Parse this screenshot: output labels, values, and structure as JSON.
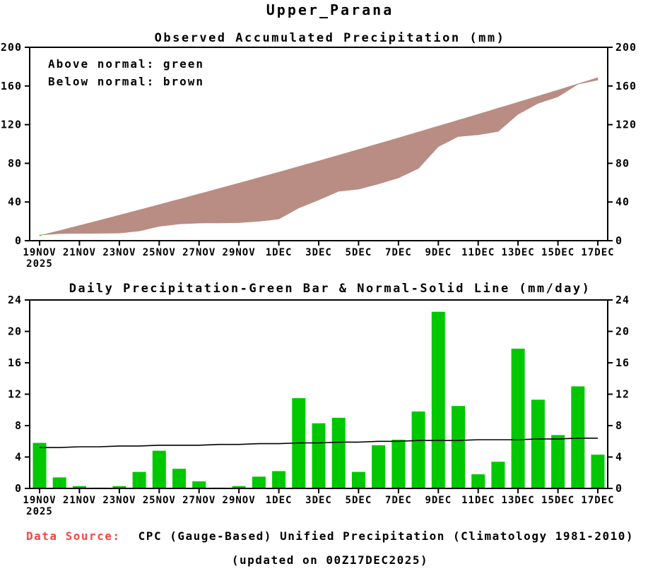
{
  "page_title": "Upper_Parana",
  "footer": {
    "data_source_label": "Data Source:",
    "data_source_text": "CPC (Gauge-Based) Unified Precipitation (Climatology 1981-2010)",
    "updated_line": "(updated on 00Z17DEC2025)",
    "label_color": "#fa4545"
  },
  "chart_data": [
    {
      "type": "area",
      "title": "Observed Accumulated Precipitation (mm)",
      "annotations": [
        "Above normal: green",
        "Below normal: brown"
      ],
      "x": [
        "19NOV",
        "20NOV",
        "21NOV",
        "22NOV",
        "23NOV",
        "24NOV",
        "25NOV",
        "26NOV",
        "27NOV",
        "28NOV",
        "29NOV",
        "30NOV",
        "1DEC",
        "2DEC",
        "3DEC",
        "4DEC",
        "5DEC",
        "6DEC",
        "7DEC",
        "8DEC",
        "9DEC",
        "10DEC",
        "11DEC",
        "12DEC",
        "13DEC",
        "14DEC",
        "15DEC",
        "16DEC",
        "17DEC"
      ],
      "x_sublabel": "2025",
      "x_tick_step": 2,
      "ylim": [
        0,
        200
      ],
      "yticks": [
        0,
        40,
        80,
        120,
        160,
        200
      ],
      "series": [
        {
          "name": "Normal accumulated precipitation",
          "values": [
            5.2,
            10.4,
            15.7,
            21.0,
            26.4,
            31.8,
            37.3,
            42.8,
            48.3,
            53.9,
            59.5,
            65.2,
            70.9,
            76.7,
            82.5,
            88.4,
            94.3,
            100.3,
            106.3,
            112.4,
            118.5,
            124.6,
            130.8,
            137.0,
            143.2,
            149.5,
            155.8,
            162.2,
            168.6
          ]
        },
        {
          "name": "Observed accumulated precipitation",
          "values": [
            5.8,
            7.2,
            7.5,
            7.6,
            7.9,
            10.0,
            14.8,
            17.3,
            18.2,
            18.3,
            18.6,
            20.1,
            22.3,
            33.8,
            42.1,
            51.1,
            53.2,
            58.7,
            64.9,
            74.7,
            97.2,
            107.7,
            109.5,
            112.9,
            130.7,
            142.0,
            148.8,
            161.8,
            166.1
          ]
        }
      ],
      "colors": {
        "below_normal_fill": "#b98d84",
        "above_normal_fill": "#00c800"
      }
    },
    {
      "type": "bar",
      "title": "Daily Precipitation-Green Bar & Normal-Solid Line (mm/day)",
      "categories": [
        "19NOV",
        "20NOV",
        "21NOV",
        "22NOV",
        "23NOV",
        "24NOV",
        "25NOV",
        "26NOV",
        "27NOV",
        "28NOV",
        "29NOV",
        "30NOV",
        "1DEC",
        "2DEC",
        "3DEC",
        "4DEC",
        "5DEC",
        "6DEC",
        "7DEC",
        "8DEC",
        "9DEC",
        "10DEC",
        "11DEC",
        "12DEC",
        "13DEC",
        "14DEC",
        "15DEC",
        "16DEC",
        "17DEC"
      ],
      "x_sublabel": "2025",
      "x_tick_step": 2,
      "ylim": [
        0,
        24
      ],
      "yticks": [
        0,
        4,
        8,
        12,
        16,
        20,
        24
      ],
      "series": [
        {
          "name": "Daily precipitation (green bar)",
          "type": "bar",
          "color": "#00c800",
          "values": [
            5.8,
            1.4,
            0.3,
            0.1,
            0.3,
            2.1,
            4.8,
            2.5,
            0.9,
            0.1,
            0.3,
            1.5,
            2.2,
            11.5,
            8.3,
            9.0,
            2.1,
            5.5,
            6.2,
            9.8,
            22.5,
            10.5,
            1.8,
            3.4,
            17.8,
            11.3,
            6.8,
            13.0,
            4.3
          ]
        },
        {
          "name": "Normal (solid line)",
          "type": "line",
          "color": "#000000",
          "values": [
            5.2,
            5.2,
            5.3,
            5.3,
            5.4,
            5.4,
            5.5,
            5.5,
            5.5,
            5.6,
            5.6,
            5.7,
            5.7,
            5.8,
            5.8,
            5.9,
            5.9,
            6.0,
            6.0,
            6.1,
            6.1,
            6.1,
            6.2,
            6.2,
            6.2,
            6.3,
            6.3,
            6.4,
            6.4
          ]
        }
      ]
    }
  ]
}
